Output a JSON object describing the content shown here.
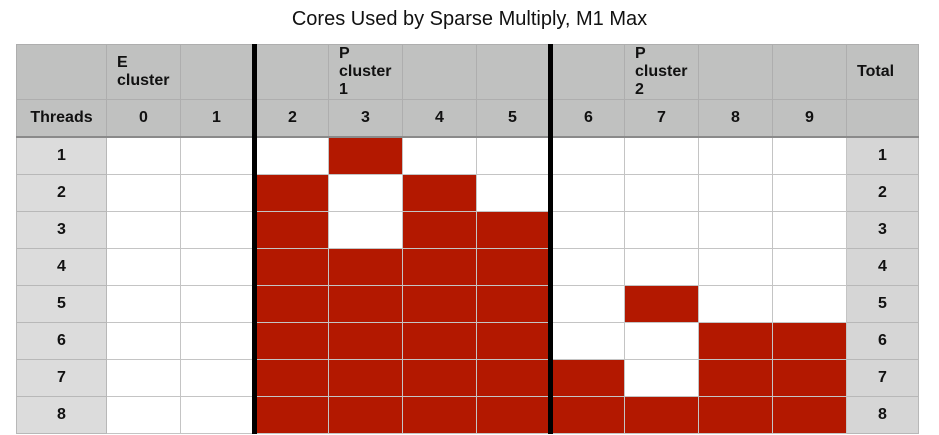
{
  "chart_data": {
    "type": "table",
    "title": "Cores Used by Sparse Multiply, M1 Max",
    "header_row1": {
      "e_cluster": "E cluster",
      "p_cluster_1": "P cluster 1",
      "p_cluster_2": "P cluster 2",
      "total": "Total"
    },
    "header_row2": {
      "threads": "Threads",
      "cores": [
        "0",
        "1",
        "2",
        "3",
        "4",
        "5",
        "6",
        "7",
        "8",
        "9"
      ]
    },
    "clusters": [
      {
        "name": "E cluster",
        "cores": [
          0,
          1
        ]
      },
      {
        "name": "P cluster 1",
        "cores": [
          2,
          3,
          4,
          5
        ]
      },
      {
        "name": "P cluster 2",
        "cores": [
          6,
          7,
          8,
          9
        ]
      }
    ],
    "active_color": "#b31800",
    "rows": [
      {
        "threads": "1",
        "used": [
          0,
          0,
          0,
          1,
          0,
          0,
          0,
          0,
          0,
          0
        ],
        "total": "1"
      },
      {
        "threads": "2",
        "used": [
          0,
          0,
          1,
          0,
          1,
          0,
          0,
          0,
          0,
          0
        ],
        "total": "2"
      },
      {
        "threads": "3",
        "used": [
          0,
          0,
          1,
          0,
          1,
          1,
          0,
          0,
          0,
          0
        ],
        "total": "3"
      },
      {
        "threads": "4",
        "used": [
          0,
          0,
          1,
          1,
          1,
          1,
          0,
          0,
          0,
          0
        ],
        "total": "4"
      },
      {
        "threads": "5",
        "used": [
          0,
          0,
          1,
          1,
          1,
          1,
          0,
          1,
          0,
          0
        ],
        "total": "5"
      },
      {
        "threads": "6",
        "used": [
          0,
          0,
          1,
          1,
          1,
          1,
          0,
          0,
          1,
          1
        ],
        "total": "6"
      },
      {
        "threads": "7",
        "used": [
          0,
          0,
          1,
          1,
          1,
          1,
          1,
          0,
          1,
          1
        ],
        "total": "7"
      },
      {
        "threads": "8",
        "used": [
          0,
          0,
          1,
          1,
          1,
          1,
          1,
          1,
          1,
          1
        ],
        "total": "8"
      }
    ]
  }
}
